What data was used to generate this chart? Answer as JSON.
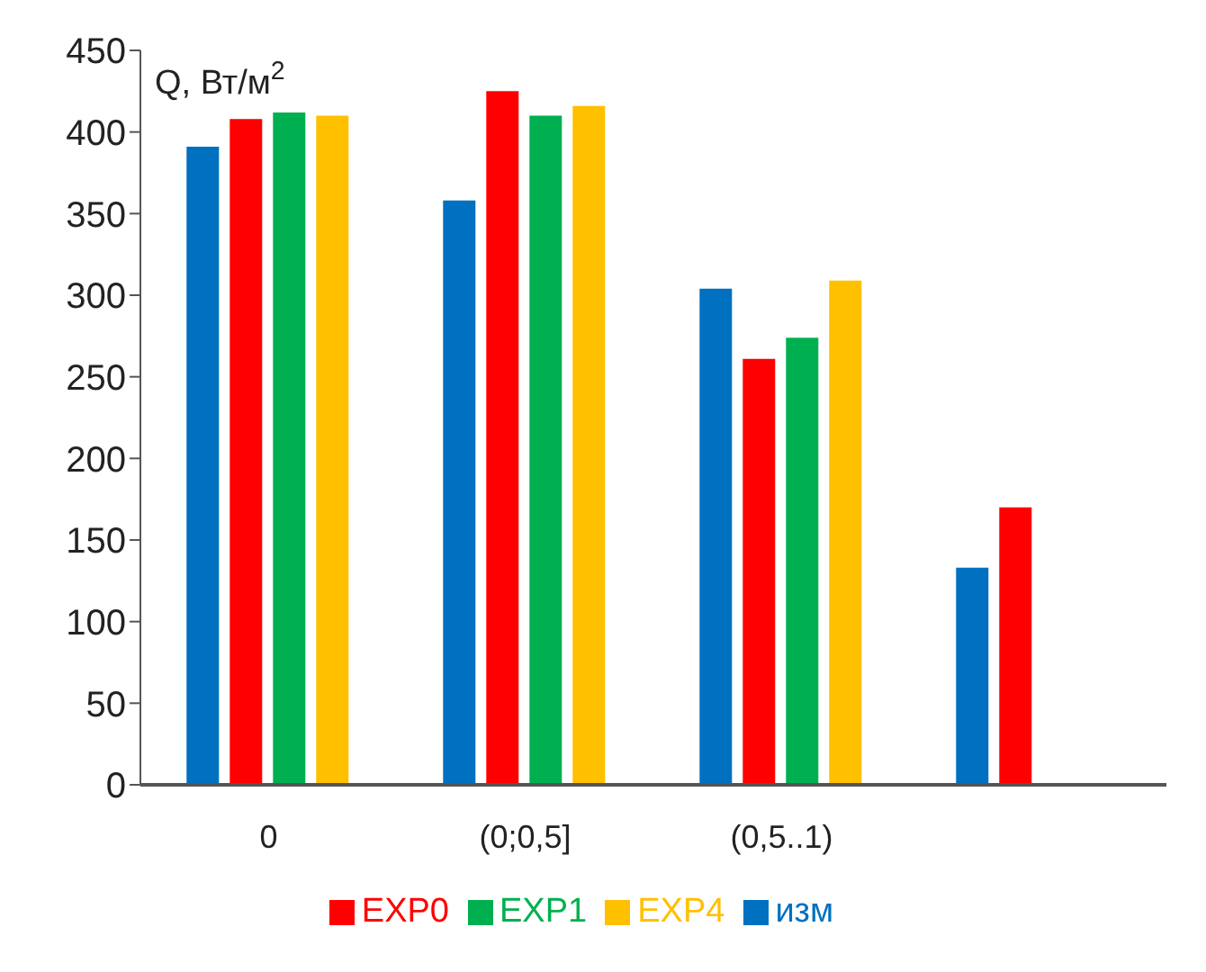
{
  "chart_data": {
    "type": "bar",
    "ylabel": "Q, Вт/м$^{2}$",
    "categories": [
      "0",
      "(0;0,5]",
      "(0,5..1)",
      null
    ],
    "series": [
      {
        "name": "изм",
        "color": "#0070c0",
        "values": [
          391,
          358,
          304,
          133
        ]
      },
      {
        "name": "EXP0",
        "color": "#ff0000",
        "values": [
          408,
          425,
          261,
          170
        ]
      },
      {
        "name": "EXP1",
        "color": "#00b050",
        "values": [
          412,
          410,
          274,
          null
        ]
      },
      {
        "name": "EXP4",
        "color": "#ffc000",
        "values": [
          410,
          416,
          309,
          null
        ]
      }
    ],
    "ylim": [
      0,
      450
    ],
    "yticks": [
      0,
      50,
      100,
      150,
      200,
      250,
      300,
      350,
      400,
      450
    ],
    "grid": false,
    "legend": "bottom"
  }
}
